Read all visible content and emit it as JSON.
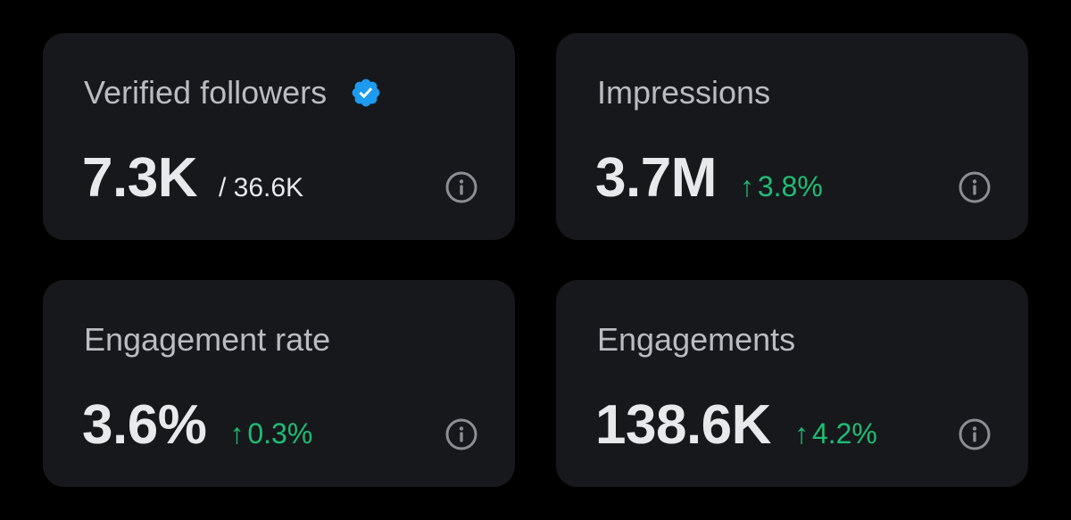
{
  "colors": {
    "background": "#000000",
    "card": "#16181c",
    "title_text": "#b9bcc0",
    "value_text": "#e7e9ea",
    "positive_change": "#1fbc73",
    "verified_badge": "#1d9bf0",
    "info_icon": "#8b8f94"
  },
  "cards": [
    {
      "title": "Verified followers",
      "title_icon": "verified-badge-icon",
      "value": "7.3K",
      "sub_value": "/ 36.6K",
      "info_icon": "info-icon"
    },
    {
      "title": "Impressions",
      "value": "3.7M",
      "change_arrow": "↑",
      "change": "3.8%",
      "info_icon": "info-icon"
    },
    {
      "title": "Engagement rate",
      "value": "3.6%",
      "change_arrow": "↑",
      "change": "0.3%",
      "info_icon": "info-icon"
    },
    {
      "title": "Engagements",
      "value": "138.6K",
      "change_arrow": "↑",
      "change": "4.2%",
      "info_icon": "info-icon"
    }
  ]
}
